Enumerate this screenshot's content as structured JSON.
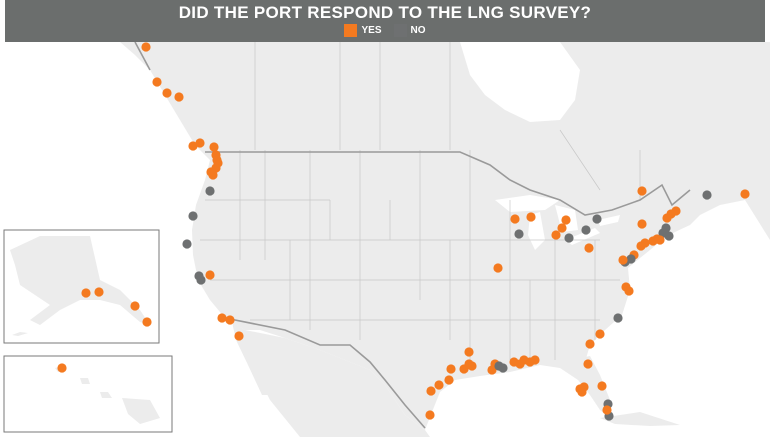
{
  "title": "DID THE PORT RESPOND TO THE LNG SURVEY?",
  "legend": {
    "yes": {
      "label": "YES",
      "color": "#f47a20"
    },
    "no": {
      "label": "NO",
      "color": "#6e7071"
    }
  },
  "map": {
    "land_color": "#ececec",
    "border_color": "#c8c8c8",
    "country_border_color": "#9a9a9a",
    "insets": [
      "alaska",
      "hawaii"
    ]
  },
  "ports": [
    {
      "region": "alaska-inset",
      "response": "yes"
    },
    {
      "region": "alaska-inset",
      "response": "yes"
    },
    {
      "region": "alaska-inset",
      "response": "yes"
    },
    {
      "region": "alaska-inset",
      "response": "yes"
    },
    {
      "region": "hawaii-inset",
      "response": "yes"
    },
    {
      "region": "british-columbia",
      "response": "yes"
    },
    {
      "region": "british-columbia",
      "response": "yes"
    },
    {
      "region": "british-columbia",
      "response": "yes"
    },
    {
      "region": "british-columbia",
      "response": "yes"
    },
    {
      "region": "british-columbia",
      "response": "yes"
    },
    {
      "region": "british-columbia",
      "response": "yes"
    },
    {
      "region": "pacific-northwest",
      "response": "yes"
    },
    {
      "region": "pacific-northwest",
      "response": "yes"
    },
    {
      "region": "pacific-northwest",
      "response": "yes"
    },
    {
      "region": "pacific-northwest",
      "response": "yes"
    },
    {
      "region": "pacific-northwest",
      "response": "yes"
    },
    {
      "region": "pacific-northwest",
      "response": "yes"
    },
    {
      "region": "pacific-northwest",
      "response": "yes"
    },
    {
      "region": "oregon-coast",
      "response": "no"
    },
    {
      "region": "oregon-coast",
      "response": "no"
    },
    {
      "region": "california",
      "response": "no"
    },
    {
      "region": "california",
      "response": "no"
    },
    {
      "region": "california",
      "response": "no"
    },
    {
      "region": "california",
      "response": "yes"
    },
    {
      "region": "california",
      "response": "yes"
    },
    {
      "region": "california",
      "response": "yes"
    },
    {
      "region": "california",
      "response": "yes"
    },
    {
      "region": "great-lakes",
      "response": "yes"
    },
    {
      "region": "great-lakes",
      "response": "yes"
    },
    {
      "region": "great-lakes",
      "response": "no"
    },
    {
      "region": "great-lakes",
      "response": "yes"
    },
    {
      "region": "great-lakes",
      "response": "yes"
    },
    {
      "region": "great-lakes",
      "response": "yes"
    },
    {
      "region": "great-lakes",
      "response": "no"
    },
    {
      "region": "great-lakes",
      "response": "no"
    },
    {
      "region": "great-lakes",
      "response": "no"
    },
    {
      "region": "great-lakes",
      "response": "yes"
    },
    {
      "region": "great-lakes",
      "response": "yes"
    },
    {
      "region": "great-lakes",
      "response": "yes"
    },
    {
      "region": "atlantic-canada",
      "response": "no"
    },
    {
      "region": "atlantic-canada",
      "response": "yes"
    },
    {
      "region": "northeast",
      "response": "yes"
    },
    {
      "region": "northeast",
      "response": "yes"
    },
    {
      "region": "northeast",
      "response": "yes"
    },
    {
      "region": "northeast",
      "response": "no"
    },
    {
      "region": "northeast",
      "response": "no"
    },
    {
      "region": "northeast",
      "response": "yes"
    },
    {
      "region": "northeast",
      "response": "yes"
    },
    {
      "region": "northeast",
      "response": "yes"
    },
    {
      "region": "northeast",
      "response": "yes"
    },
    {
      "region": "northeast",
      "response": "yes"
    },
    {
      "region": "northeast",
      "response": "no"
    },
    {
      "region": "mid-atlantic",
      "response": "yes"
    },
    {
      "region": "mid-atlantic",
      "response": "no"
    },
    {
      "region": "mid-atlantic",
      "response": "no"
    },
    {
      "region": "mid-atlantic",
      "response": "yes"
    },
    {
      "region": "southeast",
      "response": "yes"
    },
    {
      "region": "southeast",
      "response": "yes"
    },
    {
      "region": "southeast",
      "response": "no"
    },
    {
      "region": "southeast",
      "response": "yes"
    },
    {
      "region": "southeast",
      "response": "yes"
    },
    {
      "region": "southeast",
      "response": "yes"
    },
    {
      "region": "southeast",
      "response": "yes"
    },
    {
      "region": "inland",
      "response": "yes"
    },
    {
      "region": "florida",
      "response": "yes"
    },
    {
      "region": "florida",
      "response": "yes"
    },
    {
      "region": "florida",
      "response": "yes"
    },
    {
      "region": "florida",
      "response": "no"
    },
    {
      "region": "florida",
      "response": "no"
    },
    {
      "region": "florida",
      "response": "yes"
    },
    {
      "region": "gulf-coast",
      "response": "yes"
    },
    {
      "region": "gulf-coast",
      "response": "yes"
    },
    {
      "region": "gulf-coast",
      "response": "yes"
    },
    {
      "region": "gulf-coast",
      "response": "yes"
    },
    {
      "region": "gulf-coast",
      "response": "yes"
    },
    {
      "region": "gulf-coast",
      "response": "yes"
    },
    {
      "region": "gulf-coast",
      "response": "yes"
    },
    {
      "region": "gulf-coast",
      "response": "yes"
    },
    {
      "region": "gulf-coast",
      "response": "yes"
    },
    {
      "region": "gulf-coast",
      "response": "yes"
    },
    {
      "region": "gulf-coast",
      "response": "no"
    },
    {
      "region": "gulf-coast",
      "response": "no"
    },
    {
      "region": "gulf-coast",
      "response": "yes"
    },
    {
      "region": "gulf-coast",
      "response": "yes"
    },
    {
      "region": "gulf-coast",
      "response": "yes"
    },
    {
      "region": "gulf-coast",
      "response": "yes"
    },
    {
      "region": "gulf-coast",
      "response": "yes"
    },
    {
      "region": "gulf-coast",
      "response": "yes"
    }
  ]
}
